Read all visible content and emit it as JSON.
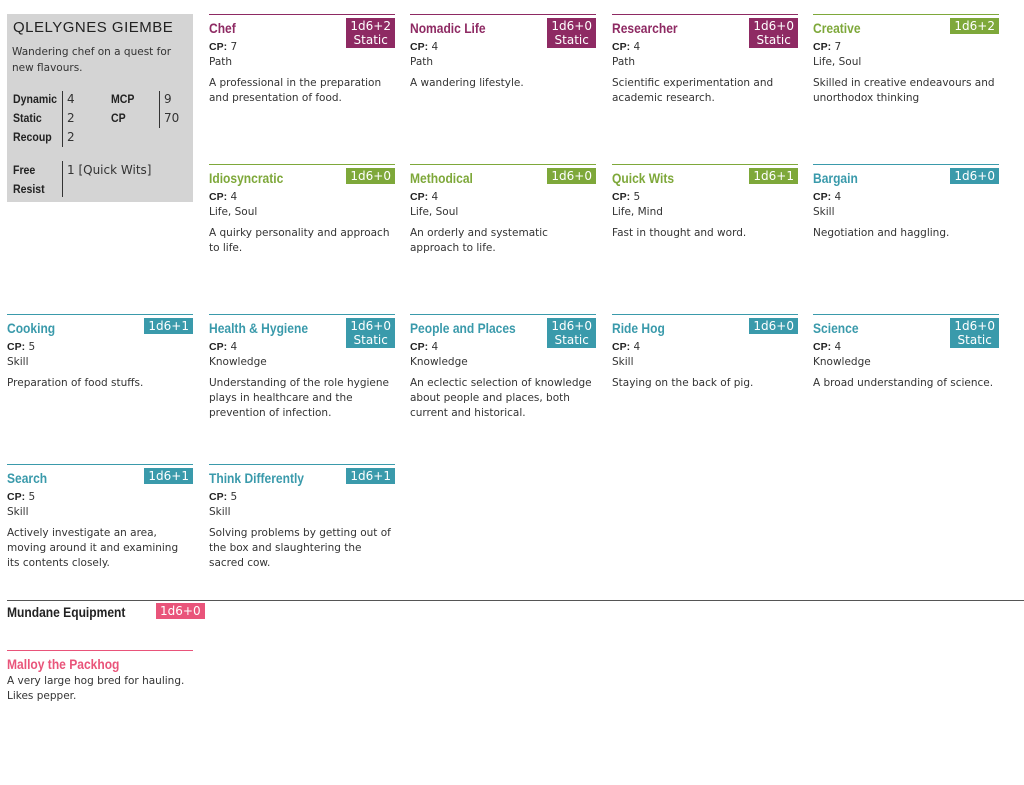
{
  "character": {
    "name": "QLELYGNES GIEMBE",
    "description": "Wandering chef on a quest for new flavours.",
    "stats": {
      "dynamic_label": "Dynamic",
      "dynamic_value": "4",
      "static_label": "Static",
      "static_value": "2",
      "recoup_label": "Recoup",
      "recoup_value": "2",
      "mcp_label": "MCP",
      "mcp_value": "9",
      "cp_label": "CP",
      "cp_value": "70",
      "free_label": "Free",
      "resist_label": "Resist",
      "free_value": "1 [Quick Wits]"
    }
  },
  "colors": {
    "path": "#8e2a63",
    "trait": "#7ea83a",
    "skill": "#3a9aab",
    "equipment": "#e9547a"
  },
  "cp_label": "CP:",
  "cards": [
    {
      "title": "Chef",
      "badge1": "1d6+2",
      "badge2": "Static",
      "cp": "7",
      "tags": "Path",
      "desc": "A professional in the preparation and presentation of food."
    },
    {
      "title": "Nomadic Life",
      "badge1": "1d6+0",
      "badge2": "Static",
      "cp": "4",
      "tags": "Path",
      "desc": "A wandering lifestyle."
    },
    {
      "title": "Researcher",
      "badge1": "1d6+0",
      "badge2": "Static",
      "cp": "4",
      "tags": "Path",
      "desc": "Scientific experimentation and academic research."
    },
    {
      "title": "Creative",
      "badge1": "1d6+2",
      "cp": "7",
      "tags": "Life, Soul",
      "desc": "Skilled in creative endeavours and unorthodox thinking"
    },
    {
      "title": "Idiosyncratic",
      "badge1": "1d6+0",
      "cp": "4",
      "tags": "Life, Soul",
      "desc": "A quirky personality and approach to life."
    },
    {
      "title": "Methodical",
      "badge1": "1d6+0",
      "cp": "4",
      "tags": "Life, Soul",
      "desc": "An orderly and systematic approach to life."
    },
    {
      "title": "Quick Wits",
      "badge1": "1d6+1",
      "cp": "5",
      "tags": "Life, Mind",
      "desc": "Fast in thought and word."
    },
    {
      "title": "Bargain",
      "badge1": "1d6+0",
      "cp": "4",
      "tags": "Skill",
      "desc": "Negotiation and haggling."
    },
    {
      "title": "Cooking",
      "badge1": "1d6+1",
      "cp": "5",
      "tags": "Skill",
      "desc": "Preparation of food stuffs."
    },
    {
      "title": "Health & Hygiene",
      "badge1": "1d6+0",
      "badge2": "Static",
      "cp": "4",
      "tags": "Knowledge",
      "desc": "Understanding of the role hygiene plays in healthcare and the prevention of infection."
    },
    {
      "title": "People and Places",
      "badge1": "1d6+0",
      "badge2": "Static",
      "cp": "4",
      "tags": "Knowledge",
      "desc": "An eclectic selection of knowledge about people and places, both current and historical."
    },
    {
      "title": "Ride Hog",
      "badge1": "1d6+0",
      "cp": "4",
      "tags": "Skill",
      "desc": "Staying on the back of pig."
    },
    {
      "title": "Science",
      "badge1": "1d6+0",
      "badge2": "Static",
      "cp": "4",
      "tags": "Knowledge",
      "desc": "A broad understanding of science."
    },
    {
      "title": "Search",
      "badge1": "1d6+1",
      "cp": "5",
      "tags": "Skill",
      "desc": "Actively investigate an area, moving around it and examining its contents closely."
    },
    {
      "title": "Think Differently",
      "badge1": "1d6+1",
      "cp": "5",
      "tags": "Skill",
      "desc": "Solving problems by getting out of the box and slaughtering the sacred cow."
    }
  ],
  "equipment": {
    "title": "Mundane Equipment",
    "badge": "1d6+0",
    "item_title": "Malloy the Packhog",
    "item_desc": "A very large hog bred for hauling. Likes pepper."
  }
}
